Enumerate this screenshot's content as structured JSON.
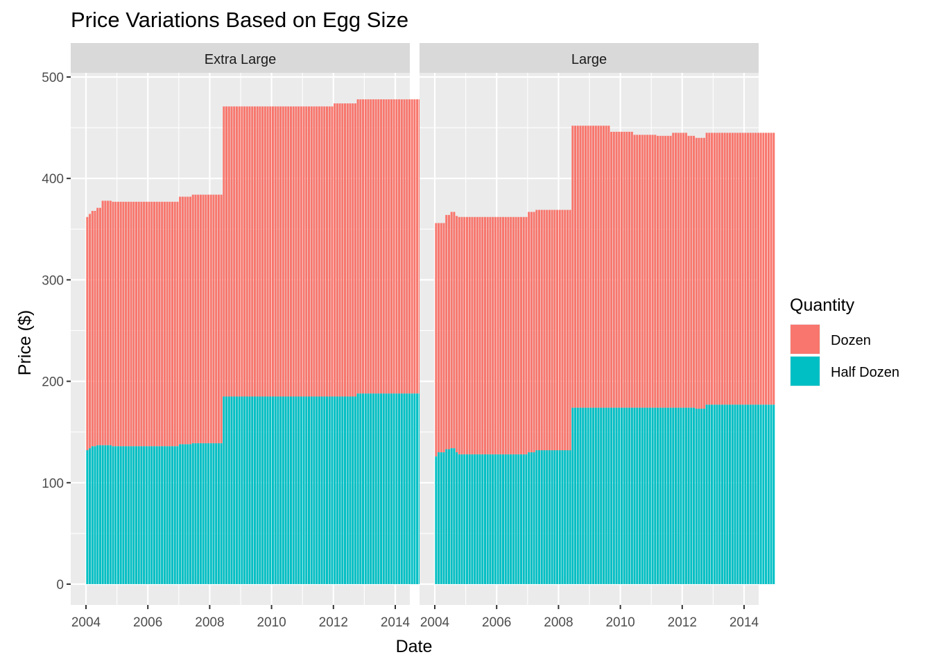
{
  "chart_data": {
    "type": "bar",
    "stacked": true,
    "title": "Price Variations Based on Egg Size",
    "xlabel": "Date",
    "ylabel": "Price ($)",
    "ylim": [
      0,
      500
    ],
    "y_ticks": [
      0,
      100,
      200,
      300,
      400,
      500
    ],
    "xlim": [
      "2004-01",
      "2014-12"
    ],
    "x_ticks": [
      "2004",
      "2006",
      "2008",
      "2010",
      "2012",
      "2014"
    ],
    "grid": true,
    "legend": {
      "title": "Quantity",
      "position": "right",
      "entries": [
        {
          "name": "Dozen",
          "color": "#F8766D"
        },
        {
          "name": "Half Dozen",
          "color": "#00BFC4"
        }
      ]
    },
    "facets": [
      {
        "label": "Extra Large",
        "segments": [
          {
            "from": "2004-01",
            "half_dozen": 132,
            "dozen": 230
          },
          {
            "from": "2004-02",
            "half_dozen": 134,
            "dozen": 231
          },
          {
            "from": "2004-03",
            "half_dozen": 136,
            "dozen": 232
          },
          {
            "from": "2004-05",
            "half_dozen": 137,
            "dozen": 234
          },
          {
            "from": "2004-07",
            "half_dozen": 137,
            "dozen": 241
          },
          {
            "from": "2004-11",
            "half_dozen": 136,
            "dozen": 241
          },
          {
            "from": "2007-01",
            "half_dozen": 138,
            "dozen": 244
          },
          {
            "from": "2007-06",
            "half_dozen": 139,
            "dozen": 245
          },
          {
            "from": "2008-06",
            "half_dozen": 185,
            "dozen": 286
          },
          {
            "from": "2012-01",
            "half_dozen": 185,
            "dozen": 289
          },
          {
            "from": "2012-10",
            "half_dozen": 188,
            "dozen": 290
          }
        ]
      },
      {
        "label": "Large",
        "segments": [
          {
            "from": "2004-01",
            "half_dozen": 126,
            "dozen": 230
          },
          {
            "from": "2004-02",
            "half_dozen": 130,
            "dozen": 226
          },
          {
            "from": "2004-05",
            "half_dozen": 133,
            "dozen": 231
          },
          {
            "from": "2004-07",
            "half_dozen": 134,
            "dozen": 233
          },
          {
            "from": "2004-09",
            "half_dozen": 130,
            "dozen": 233
          },
          {
            "from": "2004-10",
            "half_dozen": 128,
            "dozen": 234
          },
          {
            "from": "2007-01",
            "half_dozen": 130,
            "dozen": 237
          },
          {
            "from": "2007-04",
            "half_dozen": 132,
            "dozen": 237
          },
          {
            "from": "2008-06",
            "half_dozen": 174,
            "dozen": 278
          },
          {
            "from": "2009-09",
            "half_dozen": 174,
            "dozen": 272
          },
          {
            "from": "2010-06",
            "half_dozen": 174,
            "dozen": 269
          },
          {
            "from": "2011-03",
            "half_dozen": 174,
            "dozen": 268
          },
          {
            "from": "2011-09",
            "half_dozen": 174,
            "dozen": 271
          },
          {
            "from": "2012-03",
            "half_dozen": 174,
            "dozen": 268
          },
          {
            "from": "2012-06",
            "half_dozen": 173,
            "dozen": 267
          },
          {
            "from": "2012-10",
            "half_dozen": 177,
            "dozen": 268
          }
        ]
      }
    ]
  }
}
